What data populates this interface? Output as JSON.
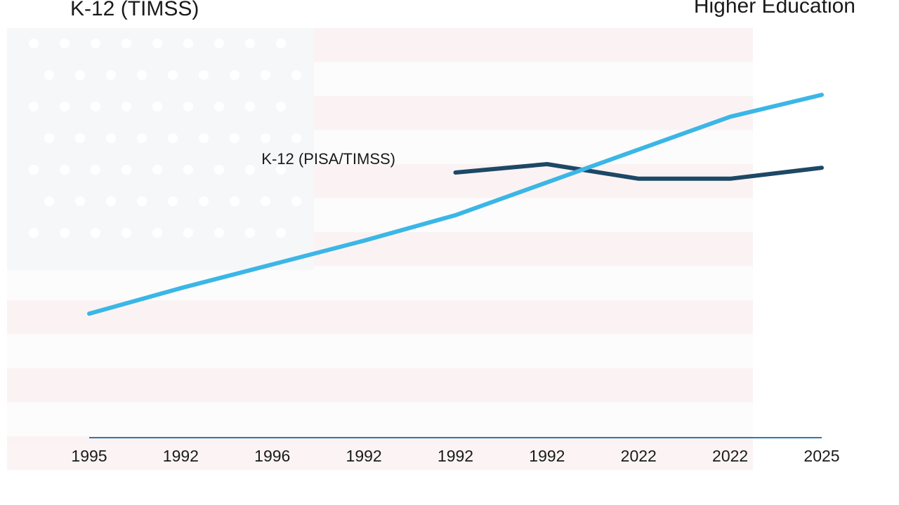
{
  "chart_data": {
    "type": "line",
    "title": "K-12 (TIMSS)",
    "categories": [
      "1995",
      "1992",
      "1996",
      "1992",
      "1992",
      "1992",
      "2022",
      "2022",
      "2025"
    ],
    "series": [
      {
        "name": "Higher Education",
        "color": "#3bb6e6",
        "values": [
          34,
          41,
          47.5,
          54,
          61,
          70,
          79,
          88,
          94
        ]
      },
      {
        "name": "K-12 (PISA/TIMSS)",
        "color": "#1d4866",
        "values": [
          null,
          null,
          null,
          null,
          72.7,
          75,
          71,
          71,
          74
        ]
      }
    ],
    "ylim": [
      0,
      100
    ]
  }
}
